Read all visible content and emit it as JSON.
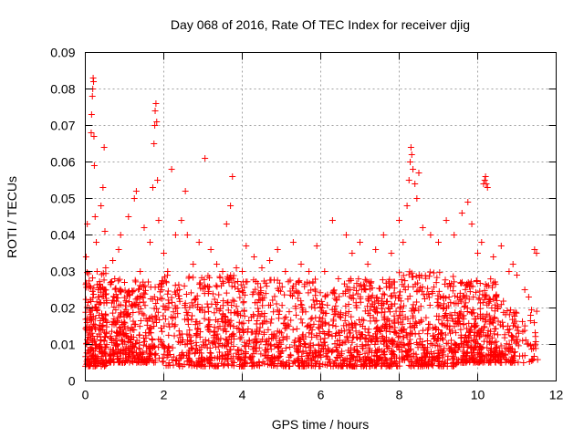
{
  "chart_data": {
    "type": "scatter",
    "title": "Day 068 of 2016, Rate Of TEC Index for receiver djig",
    "xlabel": "GPS time / hours",
    "ylabel": "ROTI / TECUs",
    "xlim": [
      0,
      12
    ],
    "ylim": [
      0,
      0.09
    ],
    "xticks": [
      0,
      2,
      4,
      6,
      8,
      10,
      12
    ],
    "yticks": [
      0,
      0.01,
      0.02,
      0.03,
      0.04,
      0.05,
      0.06,
      0.07,
      0.08,
      0.09
    ],
    "xtick_labels": [
      "0",
      "2",
      "4",
      "6",
      "8",
      "10",
      "12"
    ],
    "ytick_labels": [
      "0",
      "0.01",
      "0.02",
      "0.03",
      "0.04",
      "0.05",
      "0.06",
      "0.07",
      "0.08",
      "0.09"
    ],
    "grid": true,
    "marker": "+",
    "color": "#ff0000",
    "series": [
      {
        "name": "ROTI",
        "points": [
          [
            0.02,
            0.034
          ],
          [
            0.05,
            0.043
          ],
          [
            0.08,
            0.012
          ],
          [
            0.1,
            0.02
          ],
          [
            0.12,
            0.026
          ],
          [
            0.15,
            0.068
          ],
          [
            0.16,
            0.073
          ],
          [
            0.18,
            0.078
          ],
          [
            0.19,
            0.08
          ],
          [
            0.2,
            0.083
          ],
          [
            0.21,
            0.082
          ],
          [
            0.22,
            0.067
          ],
          [
            0.23,
            0.059
          ],
          [
            0.25,
            0.045
          ],
          [
            0.28,
            0.038
          ],
          [
            0.3,
            0.03
          ],
          [
            0.33,
            0.025
          ],
          [
            0.35,
            0.018
          ],
          [
            0.4,
            0.048
          ],
          [
            0.45,
            0.053
          ],
          [
            0.48,
            0.064
          ],
          [
            0.5,
            0.041
          ],
          [
            0.52,
            0.031
          ],
          [
            0.55,
            0.016
          ],
          [
            0.7,
            0.033
          ],
          [
            0.75,
            0.028
          ],
          [
            0.85,
            0.036
          ],
          [
            0.9,
            0.04
          ],
          [
            1.0,
            0.027
          ],
          [
            1.1,
            0.045
          ],
          [
            1.25,
            0.05
          ],
          [
            1.3,
            0.052
          ],
          [
            1.4,
            0.03
          ],
          [
            1.5,
            0.042
          ],
          [
            1.65,
            0.038
          ],
          [
            1.72,
            0.053
          ],
          [
            1.75,
            0.065
          ],
          [
            1.77,
            0.07
          ],
          [
            1.78,
            0.074
          ],
          [
            1.8,
            0.076
          ],
          [
            1.82,
            0.071
          ],
          [
            1.84,
            0.055
          ],
          [
            1.87,
            0.044
          ],
          [
            2.0,
            0.035
          ],
          [
            2.1,
            0.03
          ],
          [
            2.2,
            0.058
          ],
          [
            2.3,
            0.04
          ],
          [
            2.45,
            0.044
          ],
          [
            2.55,
            0.052
          ],
          [
            2.6,
            0.04
          ],
          [
            2.75,
            0.032
          ],
          [
            2.9,
            0.038
          ],
          [
            3.05,
            0.061
          ],
          [
            3.2,
            0.036
          ],
          [
            3.35,
            0.032
          ],
          [
            3.5,
            0.03
          ],
          [
            3.6,
            0.043
          ],
          [
            3.7,
            0.048
          ],
          [
            3.75,
            0.056
          ],
          [
            3.85,
            0.031
          ],
          [
            4.0,
            0.03
          ],
          [
            4.1,
            0.037
          ],
          [
            4.3,
            0.034
          ],
          [
            4.5,
            0.031
          ],
          [
            4.7,
            0.033
          ],
          [
            4.9,
            0.036
          ],
          [
            5.1,
            0.03
          ],
          [
            5.3,
            0.038
          ],
          [
            5.5,
            0.032
          ],
          [
            5.7,
            0.03
          ],
          [
            5.9,
            0.037
          ],
          [
            6.1,
            0.03
          ],
          [
            6.3,
            0.044
          ],
          [
            6.45,
            0.028
          ],
          [
            6.65,
            0.04
          ],
          [
            6.8,
            0.035
          ],
          [
            7.0,
            0.038
          ],
          [
            7.2,
            0.032
          ],
          [
            7.4,
            0.036
          ],
          [
            7.6,
            0.04
          ],
          [
            7.8,
            0.035
          ],
          [
            8.0,
            0.044
          ],
          [
            8.1,
            0.038
          ],
          [
            8.2,
            0.048
          ],
          [
            8.25,
            0.055
          ],
          [
            8.28,
            0.06
          ],
          [
            8.3,
            0.064
          ],
          [
            8.32,
            0.062
          ],
          [
            8.35,
            0.058
          ],
          [
            8.4,
            0.054
          ],
          [
            8.45,
            0.05
          ],
          [
            8.5,
            0.057
          ],
          [
            8.6,
            0.042
          ],
          [
            8.8,
            0.04
          ],
          [
            9.0,
            0.038
          ],
          [
            9.2,
            0.044
          ],
          [
            9.4,
            0.04
          ],
          [
            9.6,
            0.046
          ],
          [
            9.75,
            0.049
          ],
          [
            9.85,
            0.043
          ],
          [
            10.0,
            0.035
          ],
          [
            10.1,
            0.038
          ],
          [
            10.15,
            0.054
          ],
          [
            10.18,
            0.055
          ],
          [
            10.2,
            0.056
          ],
          [
            10.22,
            0.054
          ],
          [
            10.25,
            0.053
          ],
          [
            10.4,
            0.034
          ],
          [
            10.6,
            0.037
          ],
          [
            10.8,
            0.03
          ],
          [
            10.9,
            0.032
          ],
          [
            11.0,
            0.029
          ],
          [
            11.2,
            0.025
          ],
          [
            11.3,
            0.023
          ],
          [
            11.35,
            0.018
          ],
          [
            11.45,
            0.036
          ],
          [
            11.5,
            0.035
          ]
        ],
        "bands": [
          [
            0.0,
            0.55,
            0.004,
            0.03,
            230
          ],
          [
            0.6,
            2.0,
            0.005,
            0.028,
            380
          ],
          [
            2.0,
            4.0,
            0.004,
            0.029,
            420
          ],
          [
            4.0,
            6.0,
            0.004,
            0.028,
            420
          ],
          [
            6.0,
            6.6,
            0.004,
            0.025,
            120
          ],
          [
            6.6,
            8.0,
            0.004,
            0.028,
            380
          ],
          [
            8.0,
            9.5,
            0.004,
            0.03,
            380
          ],
          [
            9.5,
            10.5,
            0.005,
            0.028,
            300
          ],
          [
            10.5,
            11.0,
            0.005,
            0.022,
            90
          ],
          [
            11.0,
            11.55,
            0.005,
            0.02,
            40
          ]
        ]
      }
    ]
  }
}
